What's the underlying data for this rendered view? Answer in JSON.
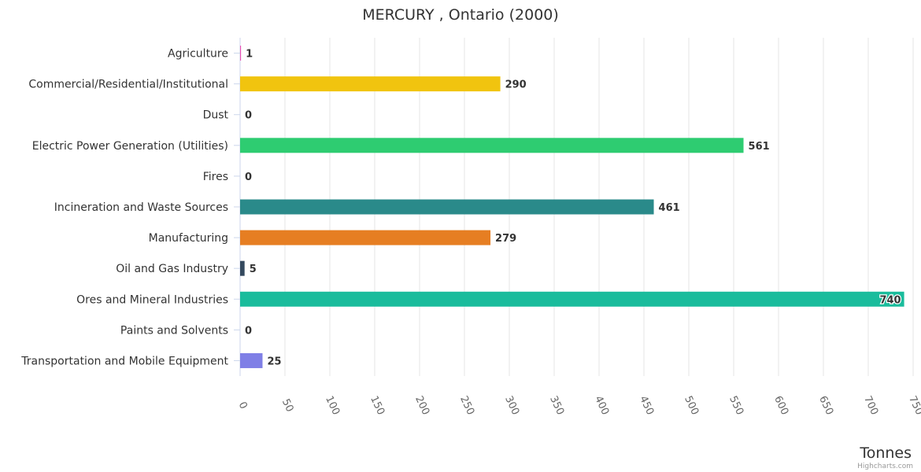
{
  "chart_data": {
    "type": "bar",
    "orientation": "horizontal",
    "title": "MERCURY , Ontario (2000)",
    "categories": [
      "Agriculture",
      "Commercial/Residential/Institutional",
      "Dust",
      "Electric Power Generation (Utilities)",
      "Fires",
      "Incineration and Waste Sources",
      "Manufacturing",
      "Oil and Gas Industry",
      "Ores and Mineral Industries",
      "Paints and Solvents",
      "Transportation and Mobile Equipment"
    ],
    "values": [
      1,
      290,
      0,
      561,
      0,
      461,
      279,
      5,
      740,
      0,
      25
    ],
    "colors": [
      "#e84fb5",
      "#f1c40f",
      "#2ecc71",
      "#2ecc71",
      "#2ecc71",
      "#2a8a8a",
      "#e67e22",
      "#34495e",
      "#1abc9c",
      "#9b59b6",
      "#7f7fe6"
    ],
    "xlabel": "Tonnes",
    "ylabel": "",
    "xlim": [
      0,
      750
    ],
    "ticks": [
      0,
      50,
      100,
      150,
      200,
      250,
      300,
      350,
      400,
      450,
      500,
      550,
      600,
      650,
      700,
      750
    ],
    "grid": true,
    "credits": "Highcharts.com"
  }
}
